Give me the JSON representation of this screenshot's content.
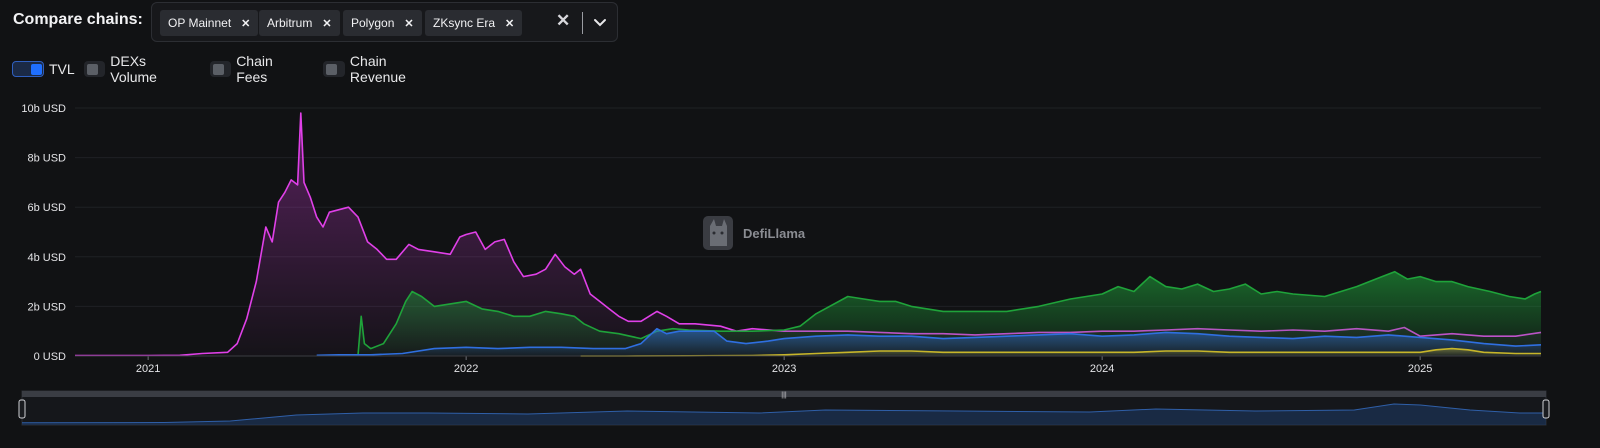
{
  "header": {
    "compare_label": "Compare chains:",
    "chains": [
      {
        "label": "OP Mainnet"
      },
      {
        "label": "Arbitrum"
      },
      {
        "label": "Polygon"
      },
      {
        "label": "ZKsync Era"
      }
    ]
  },
  "toggles": [
    {
      "label": "TVL",
      "on": true
    },
    {
      "label": "DEXs Volume",
      "on": false
    },
    {
      "label": "Chain Fees",
      "on": false
    },
    {
      "label": "Chain Revenue",
      "on": false
    }
  ],
  "watermark": "DefiLlama",
  "colors": {
    "polygon": "#e040e8",
    "arbitrum": "#1fa33a",
    "op_mainnet": "#2f6fe0",
    "zksync_era": "#c7b52a"
  },
  "chart_data": {
    "type": "area",
    "ylabel": "",
    "xlabel": "",
    "ylim": [
      0,
      10
    ],
    "y_unit": "b USD",
    "y_ticks": [
      "0 USD",
      "2b USD",
      "4b USD",
      "6b USD",
      "8b USD",
      "10b USD"
    ],
    "x_ticks": [
      "2021",
      "2022",
      "2023",
      "2024",
      "2025"
    ],
    "xlim": [
      2020.77,
      2025.38
    ],
    "grid": true,
    "legend": "none",
    "series": [
      {
        "key": "polygon",
        "points": [
          [
            2020.77,
            0.02
          ],
          [
            2021.0,
            0.02
          ],
          [
            2021.1,
            0.03
          ],
          [
            2021.17,
            0.1
          ],
          [
            2021.25,
            0.15
          ],
          [
            2021.28,
            0.5
          ],
          [
            2021.31,
            1.5
          ],
          [
            2021.34,
            3.0
          ],
          [
            2021.37,
            5.2
          ],
          [
            2021.39,
            4.6
          ],
          [
            2021.41,
            6.2
          ],
          [
            2021.43,
            6.6
          ],
          [
            2021.45,
            7.1
          ],
          [
            2021.47,
            6.9
          ],
          [
            2021.48,
            9.8
          ],
          [
            2021.49,
            7.0
          ],
          [
            2021.51,
            6.4
          ],
          [
            2021.53,
            5.6
          ],
          [
            2021.55,
            5.2
          ],
          [
            2021.57,
            5.8
          ],
          [
            2021.6,
            5.9
          ],
          [
            2021.63,
            6.0
          ],
          [
            2021.66,
            5.6
          ],
          [
            2021.69,
            4.6
          ],
          [
            2021.72,
            4.3
          ],
          [
            2021.75,
            3.9
          ],
          [
            2021.78,
            3.9
          ],
          [
            2021.82,
            4.5
          ],
          [
            2021.85,
            4.3
          ],
          [
            2021.9,
            4.2
          ],
          [
            2021.95,
            4.1
          ],
          [
            2021.98,
            4.8
          ],
          [
            2022.0,
            4.9
          ],
          [
            2022.03,
            5.0
          ],
          [
            2022.06,
            4.3
          ],
          [
            2022.09,
            4.6
          ],
          [
            2022.12,
            4.7
          ],
          [
            2022.15,
            3.8
          ],
          [
            2022.18,
            3.2
          ],
          [
            2022.22,
            3.3
          ],
          [
            2022.25,
            3.5
          ],
          [
            2022.28,
            4.1
          ],
          [
            2022.31,
            3.6
          ],
          [
            2022.34,
            3.3
          ],
          [
            2022.36,
            3.5
          ],
          [
            2022.39,
            2.5
          ],
          [
            2022.42,
            2.2
          ],
          [
            2022.45,
            1.9
          ],
          [
            2022.48,
            1.6
          ],
          [
            2022.51,
            1.4
          ],
          [
            2022.55,
            1.4
          ],
          [
            2022.6,
            1.8
          ],
          [
            2022.63,
            1.6
          ],
          [
            2022.67,
            1.3
          ],
          [
            2022.72,
            1.3
          ],
          [
            2022.8,
            1.2
          ],
          [
            2022.85,
            1.0
          ],
          [
            2022.9,
            1.1
          ],
          [
            2023.0,
            1.0
          ],
          [
            2023.1,
            1.0
          ],
          [
            2023.2,
            1.0
          ],
          [
            2023.3,
            0.95
          ],
          [
            2023.4,
            0.9
          ],
          [
            2023.5,
            0.9
          ],
          [
            2023.6,
            0.85
          ],
          [
            2023.7,
            0.9
          ],
          [
            2023.8,
            0.95
          ],
          [
            2023.9,
            0.95
          ],
          [
            2024.0,
            1.0
          ],
          [
            2024.1,
            1.0
          ],
          [
            2024.2,
            1.05
          ],
          [
            2024.3,
            1.1
          ],
          [
            2024.4,
            1.05
          ],
          [
            2024.5,
            1.0
          ],
          [
            2024.6,
            1.05
          ],
          [
            2024.7,
            1.0
          ],
          [
            2024.8,
            1.1
          ],
          [
            2024.9,
            1.0
          ],
          [
            2024.95,
            1.15
          ],
          [
            2025.0,
            0.8
          ],
          [
            2025.1,
            0.9
          ],
          [
            2025.2,
            0.8
          ],
          [
            2025.3,
            0.8
          ],
          [
            2025.38,
            0.95
          ]
        ]
      },
      {
        "key": "arbitrum",
        "points": [
          [
            2021.66,
            0.02
          ],
          [
            2021.67,
            1.6
          ],
          [
            2021.68,
            0.5
          ],
          [
            2021.7,
            0.3
          ],
          [
            2021.74,
            0.5
          ],
          [
            2021.78,
            1.3
          ],
          [
            2021.81,
            2.2
          ],
          [
            2021.83,
            2.6
          ],
          [
            2021.86,
            2.4
          ],
          [
            2021.9,
            2.0
          ],
          [
            2021.95,
            2.1
          ],
          [
            2022.0,
            2.2
          ],
          [
            2022.05,
            1.9
          ],
          [
            2022.1,
            1.8
          ],
          [
            2022.15,
            1.6
          ],
          [
            2022.2,
            1.6
          ],
          [
            2022.25,
            1.8
          ],
          [
            2022.3,
            1.7
          ],
          [
            2022.34,
            1.6
          ],
          [
            2022.37,
            1.3
          ],
          [
            2022.42,
            1.0
          ],
          [
            2022.48,
            0.9
          ],
          [
            2022.55,
            0.7
          ],
          [
            2022.6,
            1.0
          ],
          [
            2022.65,
            1.1
          ],
          [
            2022.7,
            1.05
          ],
          [
            2022.8,
            1.0
          ],
          [
            2022.9,
            1.0
          ],
          [
            2023.0,
            1.05
          ],
          [
            2023.05,
            1.2
          ],
          [
            2023.1,
            1.7
          ],
          [
            2023.2,
            2.4
          ],
          [
            2023.25,
            2.3
          ],
          [
            2023.3,
            2.2
          ],
          [
            2023.35,
            2.2
          ],
          [
            2023.4,
            2.0
          ],
          [
            2023.5,
            1.8
          ],
          [
            2023.6,
            1.8
          ],
          [
            2023.7,
            1.8
          ],
          [
            2023.8,
            2.0
          ],
          [
            2023.9,
            2.3
          ],
          [
            2024.0,
            2.5
          ],
          [
            2024.05,
            2.8
          ],
          [
            2024.1,
            2.6
          ],
          [
            2024.15,
            3.2
          ],
          [
            2024.2,
            2.8
          ],
          [
            2024.25,
            2.7
          ],
          [
            2024.3,
            2.9
          ],
          [
            2024.35,
            2.6
          ],
          [
            2024.4,
            2.7
          ],
          [
            2024.45,
            2.9
          ],
          [
            2024.5,
            2.5
          ],
          [
            2024.55,
            2.6
          ],
          [
            2024.6,
            2.5
          ],
          [
            2024.7,
            2.4
          ],
          [
            2024.8,
            2.8
          ],
          [
            2024.88,
            3.2
          ],
          [
            2024.92,
            3.4
          ],
          [
            2024.96,
            3.1
          ],
          [
            2025.0,
            3.2
          ],
          [
            2025.05,
            3.0
          ],
          [
            2025.1,
            3.0
          ],
          [
            2025.15,
            2.8
          ],
          [
            2025.22,
            2.6
          ],
          [
            2025.28,
            2.4
          ],
          [
            2025.33,
            2.3
          ],
          [
            2025.36,
            2.5
          ],
          [
            2025.38,
            2.6
          ]
        ]
      },
      {
        "key": "op_mainnet",
        "points": [
          [
            2021.53,
            0.03
          ],
          [
            2021.6,
            0.05
          ],
          [
            2021.7,
            0.05
          ],
          [
            2021.8,
            0.1
          ],
          [
            2021.9,
            0.3
          ],
          [
            2022.0,
            0.35
          ],
          [
            2022.1,
            0.3
          ],
          [
            2022.2,
            0.35
          ],
          [
            2022.3,
            0.35
          ],
          [
            2022.4,
            0.3
          ],
          [
            2022.45,
            0.3
          ],
          [
            2022.5,
            0.3
          ],
          [
            2022.55,
            0.5
          ],
          [
            2022.6,
            1.1
          ],
          [
            2022.63,
            0.9
          ],
          [
            2022.67,
            1.0
          ],
          [
            2022.72,
            1.0
          ],
          [
            2022.78,
            1.0
          ],
          [
            2022.82,
            0.6
          ],
          [
            2022.88,
            0.5
          ],
          [
            2022.95,
            0.6
          ],
          [
            2023.0,
            0.7
          ],
          [
            2023.1,
            0.8
          ],
          [
            2023.2,
            0.85
          ],
          [
            2023.3,
            0.8
          ],
          [
            2023.4,
            0.8
          ],
          [
            2023.5,
            0.7
          ],
          [
            2023.6,
            0.75
          ],
          [
            2023.7,
            0.8
          ],
          [
            2023.8,
            0.85
          ],
          [
            2023.9,
            0.9
          ],
          [
            2024.0,
            0.8
          ],
          [
            2024.1,
            0.85
          ],
          [
            2024.2,
            0.95
          ],
          [
            2024.3,
            0.9
          ],
          [
            2024.4,
            0.8
          ],
          [
            2024.5,
            0.75
          ],
          [
            2024.6,
            0.7
          ],
          [
            2024.7,
            0.8
          ],
          [
            2024.8,
            0.75
          ],
          [
            2024.9,
            0.85
          ],
          [
            2025.0,
            0.75
          ],
          [
            2025.1,
            0.65
          ],
          [
            2025.2,
            0.5
          ],
          [
            2025.3,
            0.4
          ],
          [
            2025.38,
            0.45
          ]
        ]
      },
      {
        "key": "zksync_era",
        "points": [
          [
            2022.36,
            0.0
          ],
          [
            2022.5,
            0.0
          ],
          [
            2022.7,
            0.01
          ],
          [
            2022.9,
            0.02
          ],
          [
            2023.0,
            0.05
          ],
          [
            2023.1,
            0.1
          ],
          [
            2023.2,
            0.15
          ],
          [
            2023.3,
            0.2
          ],
          [
            2023.4,
            0.2
          ],
          [
            2023.5,
            0.15
          ],
          [
            2023.6,
            0.15
          ],
          [
            2023.7,
            0.15
          ],
          [
            2023.8,
            0.15
          ],
          [
            2023.9,
            0.15
          ],
          [
            2024.0,
            0.15
          ],
          [
            2024.1,
            0.15
          ],
          [
            2024.2,
            0.2
          ],
          [
            2024.3,
            0.2
          ],
          [
            2024.4,
            0.15
          ],
          [
            2024.5,
            0.15
          ],
          [
            2024.6,
            0.15
          ],
          [
            2024.7,
            0.15
          ],
          [
            2024.8,
            0.15
          ],
          [
            2024.9,
            0.15
          ],
          [
            2025.0,
            0.15
          ],
          [
            2025.05,
            0.25
          ],
          [
            2025.1,
            0.3
          ],
          [
            2025.15,
            0.25
          ],
          [
            2025.2,
            0.15
          ],
          [
            2025.3,
            0.1
          ],
          [
            2025.38,
            0.1
          ]
        ]
      }
    ],
    "overview": {
      "points": [
        [
          2020.77,
          0.02
        ],
        [
          2021.2,
          0.05
        ],
        [
          2021.4,
          0.2
        ],
        [
          2021.6,
          0.8
        ],
        [
          2021.8,
          1.0
        ],
        [
          2022.0,
          1.0
        ],
        [
          2022.3,
          0.9
        ],
        [
          2022.6,
          1.2
        ],
        [
          2022.8,
          1.1
        ],
        [
          2023.0,
          1.0
        ],
        [
          2023.2,
          1.3
        ],
        [
          2023.6,
          1.2
        ],
        [
          2024.0,
          1.1
        ],
        [
          2024.2,
          1.4
        ],
        [
          2024.5,
          1.2
        ],
        [
          2024.8,
          1.3
        ],
        [
          2024.92,
          1.9
        ],
        [
          2025.0,
          1.8
        ],
        [
          2025.15,
          1.3
        ],
        [
          2025.3,
          1.0
        ],
        [
          2025.38,
          1.0
        ]
      ]
    }
  }
}
